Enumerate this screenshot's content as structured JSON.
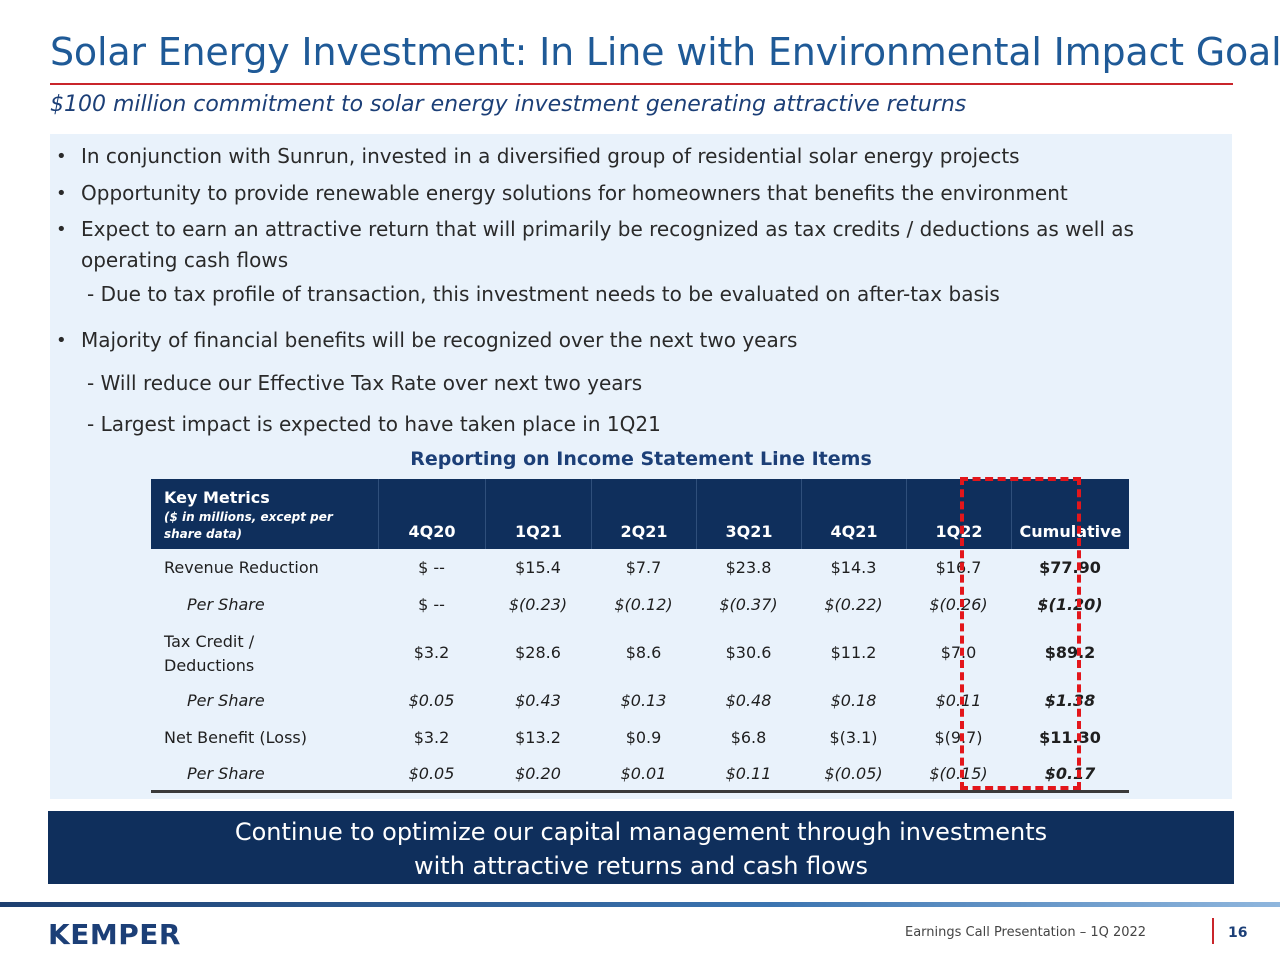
{
  "header": {
    "title": "Solar Energy Investment: In Line with Environmental Impact Goals",
    "subtitle": "$100 million commitment to solar energy investment generating attractive returns"
  },
  "bullets": [
    "In conjunction with Sunrun, invested in a diversified group of residential solar energy projects",
    "Opportunity to provide renewable energy solutions for homeowners that benefits the environment",
    "Expect to earn an attractive return that will primarily be recognized as tax credits / deductions as well as operating cash flows",
    "Majority of financial benefits will be recognized over the next two years"
  ],
  "sub_bullets": [
    "- Due to tax profile of transaction, this investment needs to be evaluated on after-tax basis",
    "- Will reduce our Effective Tax Rate over next two years",
    "- Largest impact is expected to have taken place in 1Q21"
  ],
  "bullet_glyph": "•",
  "table": {
    "title": "Reporting on Income Statement Line Items",
    "key_metrics_title": "Key Metrics",
    "key_metrics_note": "($ in millions, except per share data)",
    "columns": [
      "4Q20",
      "1Q21",
      "2Q21",
      "3Q21",
      "4Q21",
      "1Q22",
      "Cumulative"
    ],
    "rows": [
      {
        "label": "Revenue Reduction",
        "values": [
          "$ --",
          "$15.4",
          "$7.7",
          "$23.8",
          "$14.3",
          "$16.7",
          "$77.90"
        ]
      },
      {
        "label": "Per Share",
        "values": [
          "$ --",
          "$(0.23)",
          "$(0.12)",
          "$(0.37)",
          "$(0.22)",
          "$(0.26)",
          "$(1.20)"
        ]
      },
      {
        "label": "Tax Credit / Deductions",
        "values": [
          "$3.2",
          "$28.6",
          "$8.6",
          "$30.6",
          "$11.2",
          "$7.0",
          "$89.2"
        ]
      },
      {
        "label": "Per Share",
        "values": [
          "$0.05",
          "$0.43",
          "$0.13",
          "$0.48",
          "$0.18",
          "$0.11",
          "$1.38"
        ]
      },
      {
        "label": "Net Benefit (Loss)",
        "values": [
          "$3.2",
          "$13.2",
          "$0.9",
          "$6.8",
          "$(3.1)",
          "$(9.7)",
          "$11.30"
        ]
      },
      {
        "label": "Per Share",
        "values": [
          "$0.05",
          "$0.20",
          "$0.01",
          "$0.11",
          "$(0.05)",
          "$(0.15)",
          "$0.17"
        ]
      }
    ]
  },
  "banner": {
    "line1": "Continue to optimize our capital management through investments",
    "line2": "with attractive returns and cash flows"
  },
  "footer": {
    "logo": "KEMPER",
    "presentation": "Earnings Call Presentation – 1Q 2022",
    "page": "16"
  },
  "colors": {
    "title": "#1f5a97",
    "accent_red": "#c9252b",
    "navy": "#0f2f5c",
    "panel": "#e9f2fb"
  }
}
